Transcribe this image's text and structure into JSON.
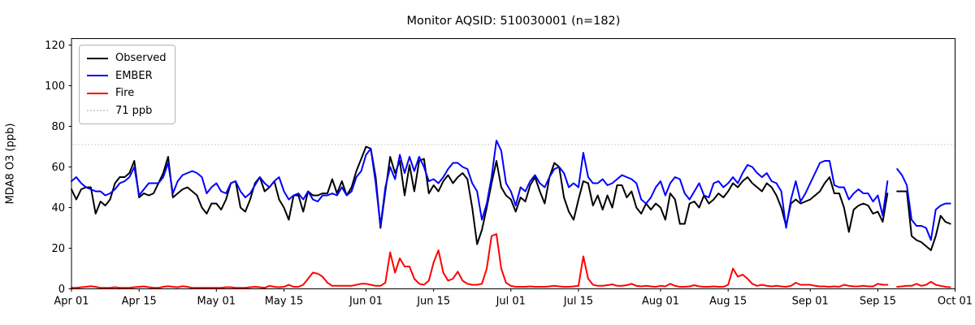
{
  "title": "Monitor AQSID: 510030001 (n=182)",
  "chart_data": {
    "type": "line",
    "title": "Monitor AQSID: 510030001 (n=182)",
    "xlabel": "",
    "ylabel": "MDA8 O3 (ppb)",
    "x_start": "Apr 01",
    "x_end": "Sep 30",
    "x_step": "1 day",
    "missing_day": "Sep 18",
    "n_points": 182,
    "ylim": [
      0,
      123.2
    ],
    "yticks": [
      0,
      20,
      40,
      60,
      80,
      100,
      120
    ],
    "xtick_labels": [
      "Apr 01",
      "Apr 15",
      "May 01",
      "May 15",
      "Jun 01",
      "Jun 15",
      "Jul 01",
      "Jul 15",
      "Aug 01",
      "Aug 15",
      "Sep 01",
      "Sep 15",
      "Oct 01"
    ],
    "xtick_days": [
      0,
      14,
      30,
      44,
      61,
      75,
      91,
      105,
      122,
      136,
      153,
      167,
      183
    ],
    "x_domain_days": [
      0,
      183
    ],
    "grid": false,
    "legend_position": "upper left",
    "legend_entries": [
      "Observed",
      "EMBER",
      "Fire",
      "71 ppb"
    ],
    "threshold": {
      "label": "71 ppb",
      "value": 71,
      "color": "#d3d3d3",
      "style": "dotted"
    },
    "series": [
      {
        "name": "Observed",
        "color": "#000000",
        "values": [
          49,
          44,
          49,
          50,
          50,
          37,
          43,
          41,
          44,
          52,
          55,
          55,
          57,
          63,
          45,
          47,
          46,
          47,
          52,
          57,
          65,
          45,
          47,
          49,
          50,
          48,
          46,
          40,
          37,
          42,
          42,
          39,
          44,
          52,
          53,
          40,
          38,
          44,
          52,
          55,
          48,
          50,
          53,
          44,
          40,
          34,
          46,
          46,
          38,
          48,
          46,
          46,
          47,
          47,
          54,
          47,
          53,
          46,
          50,
          58,
          64,
          70,
          69,
          55,
          30,
          48,
          65,
          57,
          63,
          46,
          61,
          48,
          63,
          64,
          47,
          51,
          48,
          53,
          56,
          52,
          55,
          57,
          54,
          40,
          22,
          29,
          40,
          52,
          63,
          50,
          46,
          44,
          38,
          45,
          43,
          51,
          55,
          48,
          42,
          55,
          62,
          60,
          45,
          38,
          34,
          44,
          53,
          52,
          41,
          46,
          39,
          46,
          40,
          51,
          51,
          45,
          48,
          40,
          37,
          42,
          39,
          42,
          40,
          34,
          47,
          44,
          32,
          32,
          42,
          43,
          40,
          46,
          42,
          44,
          47,
          45,
          48,
          52,
          50,
          53,
          55,
          52,
          50,
          48,
          52,
          50,
          46,
          40,
          31,
          42,
          44,
          42,
          43,
          44,
          46,
          48,
          52,
          55,
          47,
          47,
          40,
          28,
          39,
          41,
          42,
          41,
          37,
          38,
          33,
          47,
          null,
          48,
          48,
          48,
          26,
          24,
          23,
          21,
          19,
          26,
          36,
          33,
          32
        ]
      },
      {
        "name": "EMBER",
        "color": "#0000ff",
        "values": [
          53,
          55,
          52,
          50,
          49,
          48,
          48,
          46,
          47,
          49,
          52,
          53,
          55,
          60,
          46,
          49,
          52,
          52,
          52,
          55,
          62,
          47,
          53,
          56,
          57,
          58,
          57,
          55,
          47,
          50,
          52,
          48,
          47,
          52,
          53,
          48,
          45,
          47,
          51,
          55,
          52,
          50,
          53,
          55,
          48,
          44,
          46,
          47,
          44,
          48,
          44,
          43,
          46,
          46,
          47,
          46,
          50,
          46,
          48,
          55,
          58,
          66,
          69,
          52,
          31,
          50,
          60,
          54,
          66,
          57,
          65,
          58,
          65,
          60,
          53,
          54,
          52,
          55,
          59,
          62,
          62,
          60,
          59,
          52,
          48,
          34,
          42,
          55,
          73,
          68,
          52,
          48,
          41,
          50,
          48,
          53,
          56,
          52,
          50,
          55,
          59,
          60,
          57,
          50,
          52,
          50,
          67,
          55,
          52,
          52,
          54,
          51,
          52,
          54,
          56,
          55,
          54,
          52,
          44,
          42,
          45,
          50,
          53,
          46,
          52,
          55,
          54,
          47,
          44,
          48,
          52,
          46,
          45,
          52,
          53,
          50,
          52,
          55,
          52,
          57,
          61,
          60,
          57,
          55,
          57,
          53,
          52,
          48,
          30,
          44,
          53,
          43,
          47,
          52,
          57,
          62,
          63,
          63,
          51,
          50,
          50,
          44,
          47,
          49,
          47,
          47,
          43,
          46,
          36,
          53,
          null,
          59,
          56,
          51,
          34,
          31,
          31,
          30,
          24,
          39,
          41,
          42,
          42
        ]
      },
      {
        "name": "Fire",
        "color": "#ff0000",
        "values": [
          0.5,
          0.5,
          0.8,
          1,
          1.3,
          1,
          0.5,
          0.5,
          0.5,
          0.8,
          0.5,
          0.5,
          0.5,
          0.8,
          1,
          1.2,
          0.8,
          0.5,
          0.5,
          1,
          1.3,
          1,
          0.8,
          1.3,
          1,
          0.5,
          0.5,
          0.5,
          0.5,
          0.5,
          0.5,
          0.5,
          0.8,
          0.8,
          0.5,
          0.5,
          0.5,
          0.8,
          1,
          0.8,
          0.5,
          1.5,
          1,
          0.8,
          1,
          2,
          1,
          1,
          2,
          5,
          8,
          7.5,
          6,
          3,
          1.5,
          1.5,
          1.5,
          1.5,
          1.5,
          2,
          2.5,
          2.5,
          2,
          1.5,
          1.5,
          3,
          18,
          8,
          15,
          11,
          11,
          5,
          2.5,
          2,
          4,
          13,
          19,
          8,
          4,
          5,
          8.5,
          4,
          2.5,
          2,
          2,
          2.5,
          10,
          26,
          27,
          10,
          3,
          1.5,
          1,
          1,
          1,
          1.2,
          1,
          1,
          1,
          1.2,
          1.5,
          1.2,
          1,
          1,
          1.2,
          1.5,
          16,
          5,
          2,
          1.5,
          1.5,
          1.8,
          2.2,
          1.5,
          1.5,
          1.8,
          2.5,
          1.5,
          1.2,
          1.5,
          1.2,
          1,
          1.5,
          1.2,
          2.5,
          1.5,
          1,
          1,
          1.2,
          1.8,
          1.2,
          1,
          1,
          1.2,
          1,
          1,
          2,
          10,
          6,
          7,
          5,
          2.5,
          1.5,
          2,
          1.5,
          1.2,
          1.5,
          1.2,
          1,
          1.5,
          3,
          2,
          2,
          2,
          1.5,
          1.2,
          1.2,
          1,
          1.2,
          1,
          2,
          1.5,
          1.2,
          1.2,
          1.5,
          1.2,
          1.2,
          2.5,
          2,
          2,
          null,
          1,
          1.2,
          1.5,
          1.5,
          2.5,
          1.5,
          2,
          3.5,
          2,
          1.5,
          1,
          0.8
        ]
      }
    ]
  },
  "axis_tick_color": "#000000",
  "spine_color": "#000000"
}
